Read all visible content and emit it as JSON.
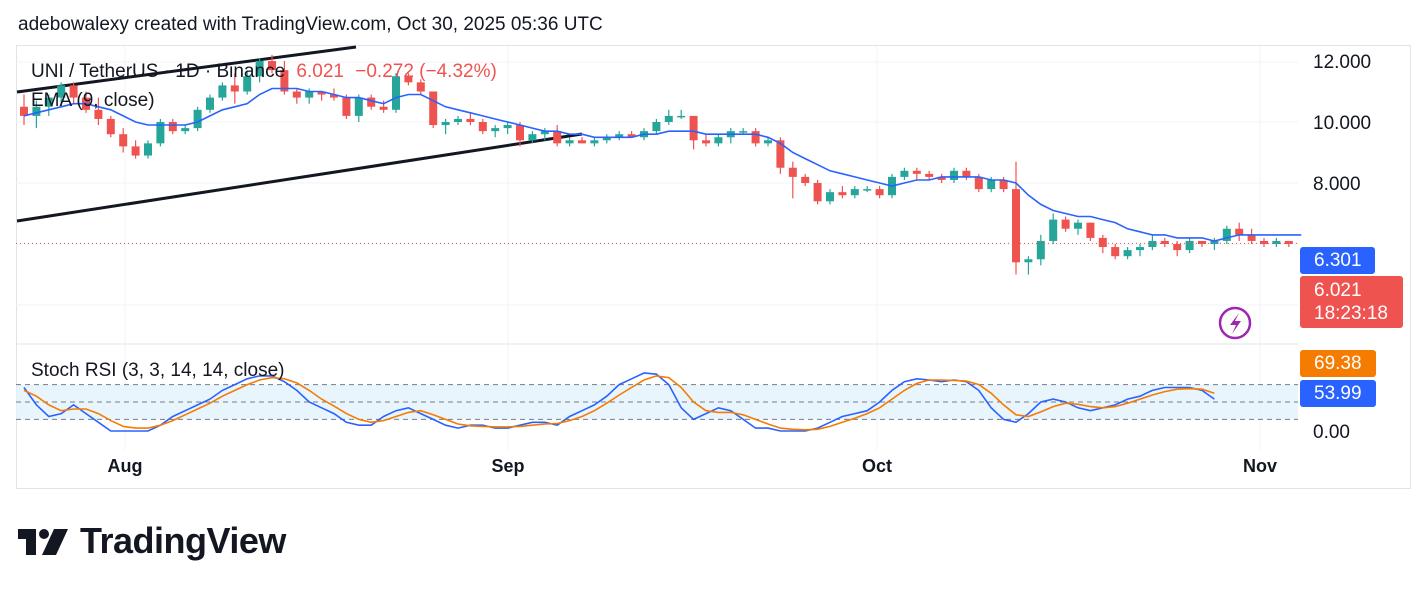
{
  "header": {
    "attribution": "adebowalexy created with TradingView.com, Oct 30, 2025 05:36 UTC"
  },
  "legend": {
    "symbol": "UNI / TetherUS · 1D · Binance",
    "last": "6.021",
    "change": "−0.272 (−4.32%)",
    "ema_label": "EMA (9, close)",
    "stoch_label": "Stoch RSI (3, 3, 14, 14, close)"
  },
  "price_scale": {
    "ticks": [
      "12.000",
      "10.000",
      "8.000"
    ],
    "ema_tag": "6.301",
    "last_tag": "6.021",
    "countdown": "18:23:18"
  },
  "stoch_scale": {
    "ticks": [
      "0.00"
    ],
    "k_tag": "69.38",
    "d_tag": "53.99"
  },
  "time_axis": [
    "Aug",
    "Sep",
    "Oct",
    "Nov"
  ],
  "brand": {
    "name": "TradingView"
  },
  "colors": {
    "up": "#26a69a",
    "down": "#ef5350",
    "ema": "#2962ff",
    "stoch_k": "#2962ff",
    "stoch_d": "#f57c00",
    "band": "#e3f2fd",
    "channel": "#131722",
    "lightning": "#9c27b0"
  },
  "chart_data": [
    {
      "type": "candlestick",
      "title": "UNI / TetherUS · 1D · Binance",
      "ylim": [
        4.9,
        13.0
      ],
      "candles": [
        {
          "o": 10.5,
          "h": 10.9,
          "l": 9.9,
          "c": 10.2
        },
        {
          "o": 10.2,
          "h": 10.7,
          "l": 9.8,
          "c": 10.5
        },
        {
          "o": 10.5,
          "h": 10.9,
          "l": 10.2,
          "c": 10.8
        },
        {
          "o": 10.8,
          "h": 11.3,
          "l": 10.5,
          "c": 11.2
        },
        {
          "o": 11.2,
          "h": 11.3,
          "l": 10.6,
          "c": 10.8
        },
        {
          "o": 10.8,
          "h": 11.0,
          "l": 10.3,
          "c": 10.4
        },
        {
          "o": 10.4,
          "h": 10.8,
          "l": 9.9,
          "c": 10.1
        },
        {
          "o": 10.1,
          "h": 10.2,
          "l": 9.5,
          "c": 9.6
        },
        {
          "o": 9.6,
          "h": 9.8,
          "l": 9.0,
          "c": 9.2
        },
        {
          "o": 9.2,
          "h": 9.4,
          "l": 8.8,
          "c": 8.9
        },
        {
          "o": 8.9,
          "h": 9.4,
          "l": 8.8,
          "c": 9.3
        },
        {
          "o": 9.3,
          "h": 10.1,
          "l": 9.2,
          "c": 10.0
        },
        {
          "o": 10.0,
          "h": 10.1,
          "l": 9.6,
          "c": 9.7
        },
        {
          "o": 9.7,
          "h": 9.9,
          "l": 9.6,
          "c": 9.8
        },
        {
          "o": 9.8,
          "h": 10.5,
          "l": 9.7,
          "c": 10.4
        },
        {
          "o": 10.4,
          "h": 10.9,
          "l": 10.3,
          "c": 10.8
        },
        {
          "o": 10.8,
          "h": 11.3,
          "l": 10.7,
          "c": 11.2
        },
        {
          "o": 11.2,
          "h": 11.6,
          "l": 10.6,
          "c": 11.0
        },
        {
          "o": 11.0,
          "h": 11.7,
          "l": 10.9,
          "c": 11.5
        },
        {
          "o": 11.5,
          "h": 12.1,
          "l": 11.3,
          "c": 12.0
        },
        {
          "o": 12.0,
          "h": 12.2,
          "l": 11.6,
          "c": 11.7
        },
        {
          "o": 11.7,
          "h": 12.0,
          "l": 10.9,
          "c": 11.0
        },
        {
          "o": 11.0,
          "h": 11.1,
          "l": 10.6,
          "c": 10.8
        },
        {
          "o": 10.8,
          "h": 11.1,
          "l": 10.6,
          "c": 11.0
        },
        {
          "o": 11.0,
          "h": 11.0,
          "l": 10.7,
          "c": 10.9
        },
        {
          "o": 10.9,
          "h": 11.1,
          "l": 10.7,
          "c": 10.8
        },
        {
          "o": 10.8,
          "h": 10.9,
          "l": 10.1,
          "c": 10.2
        },
        {
          "o": 10.2,
          "h": 10.9,
          "l": 10.0,
          "c": 10.8
        },
        {
          "o": 10.8,
          "h": 10.9,
          "l": 10.4,
          "c": 10.5
        },
        {
          "o": 10.5,
          "h": 10.7,
          "l": 10.3,
          "c": 10.4
        },
        {
          "o": 10.4,
          "h": 11.6,
          "l": 10.3,
          "c": 11.5
        },
        {
          "o": 11.5,
          "h": 11.6,
          "l": 11.2,
          "c": 11.3
        },
        {
          "o": 11.3,
          "h": 11.4,
          "l": 10.9,
          "c": 11.0
        },
        {
          "o": 11.0,
          "h": 11.0,
          "l": 9.8,
          "c": 9.9
        },
        {
          "o": 9.9,
          "h": 10.1,
          "l": 9.6,
          "c": 10.0
        },
        {
          "o": 10.0,
          "h": 10.2,
          "l": 9.9,
          "c": 10.1
        },
        {
          "o": 10.1,
          "h": 10.3,
          "l": 9.9,
          "c": 10.0
        },
        {
          "o": 10.0,
          "h": 10.1,
          "l": 9.6,
          "c": 9.7
        },
        {
          "o": 9.7,
          "h": 9.9,
          "l": 9.5,
          "c": 9.8
        },
        {
          "o": 9.8,
          "h": 10.0,
          "l": 9.6,
          "c": 9.9
        },
        {
          "o": 9.9,
          "h": 10.0,
          "l": 9.2,
          "c": 9.4
        },
        {
          "o": 9.4,
          "h": 9.7,
          "l": 9.3,
          "c": 9.6
        },
        {
          "o": 9.6,
          "h": 9.8,
          "l": 9.4,
          "c": 9.7
        },
        {
          "o": 9.7,
          "h": 9.9,
          "l": 9.2,
          "c": 9.3
        },
        {
          "o": 9.3,
          "h": 9.5,
          "l": 9.2,
          "c": 9.4
        },
        {
          "o": 9.4,
          "h": 9.5,
          "l": 9.3,
          "c": 9.3
        },
        {
          "o": 9.3,
          "h": 9.5,
          "l": 9.2,
          "c": 9.4
        },
        {
          "o": 9.4,
          "h": 9.6,
          "l": 9.3,
          "c": 9.5
        },
        {
          "o": 9.5,
          "h": 9.7,
          "l": 9.4,
          "c": 9.6
        },
        {
          "o": 9.6,
          "h": 9.7,
          "l": 9.5,
          "c": 9.5
        },
        {
          "o": 9.5,
          "h": 9.8,
          "l": 9.4,
          "c": 9.7
        },
        {
          "o": 9.7,
          "h": 10.1,
          "l": 9.6,
          "c": 10.0
        },
        {
          "o": 10.0,
          "h": 10.4,
          "l": 9.9,
          "c": 10.2
        },
        {
          "o": 10.2,
          "h": 10.4,
          "l": 10.1,
          "c": 10.2
        },
        {
          "o": 10.2,
          "h": 10.2,
          "l": 9.1,
          "c": 9.4
        },
        {
          "o": 9.4,
          "h": 9.6,
          "l": 9.2,
          "c": 9.3
        },
        {
          "o": 9.3,
          "h": 9.6,
          "l": 9.2,
          "c": 9.5
        },
        {
          "o": 9.5,
          "h": 9.8,
          "l": 9.3,
          "c": 9.7
        },
        {
          "o": 9.7,
          "h": 9.8,
          "l": 9.6,
          "c": 9.7
        },
        {
          "o": 9.7,
          "h": 9.8,
          "l": 9.2,
          "c": 9.3
        },
        {
          "o": 9.3,
          "h": 9.5,
          "l": 9.2,
          "c": 9.4
        },
        {
          "o": 9.4,
          "h": 9.5,
          "l": 8.3,
          "c": 8.5
        },
        {
          "o": 8.5,
          "h": 8.7,
          "l": 7.5,
          "c": 8.2
        },
        {
          "o": 8.2,
          "h": 8.3,
          "l": 7.9,
          "c": 8.0
        },
        {
          "o": 8.0,
          "h": 8.1,
          "l": 7.3,
          "c": 7.4
        },
        {
          "o": 7.4,
          "h": 7.8,
          "l": 7.3,
          "c": 7.7
        },
        {
          "o": 7.7,
          "h": 7.9,
          "l": 7.5,
          "c": 7.6
        },
        {
          "o": 7.6,
          "h": 7.9,
          "l": 7.5,
          "c": 7.8
        },
        {
          "o": 7.8,
          "h": 7.9,
          "l": 7.7,
          "c": 7.8
        },
        {
          "o": 7.8,
          "h": 7.9,
          "l": 7.5,
          "c": 7.6
        },
        {
          "o": 7.6,
          "h": 8.3,
          "l": 7.5,
          "c": 8.2
        },
        {
          "o": 8.2,
          "h": 8.5,
          "l": 8.1,
          "c": 8.4
        },
        {
          "o": 8.4,
          "h": 8.5,
          "l": 8.1,
          "c": 8.3
        },
        {
          "o": 8.3,
          "h": 8.4,
          "l": 8.1,
          "c": 8.2
        },
        {
          "o": 8.2,
          "h": 8.3,
          "l": 8.0,
          "c": 8.1
        },
        {
          "o": 8.1,
          "h": 8.5,
          "l": 8.0,
          "c": 8.4
        },
        {
          "o": 8.4,
          "h": 8.5,
          "l": 8.1,
          "c": 8.2
        },
        {
          "o": 8.2,
          "h": 8.3,
          "l": 7.7,
          "c": 7.8
        },
        {
          "o": 7.8,
          "h": 8.2,
          "l": 7.7,
          "c": 8.1
        },
        {
          "o": 8.1,
          "h": 8.2,
          "l": 7.7,
          "c": 7.8
        },
        {
          "o": 7.8,
          "h": 8.7,
          "l": 5.0,
          "c": 5.4
        },
        {
          "o": 5.4,
          "h": 5.6,
          "l": 5.0,
          "c": 5.5
        },
        {
          "o": 5.5,
          "h": 6.3,
          "l": 5.3,
          "c": 6.1
        },
        {
          "o": 6.1,
          "h": 7.0,
          "l": 6.0,
          "c": 6.8
        },
        {
          "o": 6.8,
          "h": 6.9,
          "l": 6.4,
          "c": 6.5
        },
        {
          "o": 6.5,
          "h": 6.8,
          "l": 6.3,
          "c": 6.7
        },
        {
          "o": 6.7,
          "h": 6.7,
          "l": 6.1,
          "c": 6.2
        },
        {
          "o": 6.2,
          "h": 6.3,
          "l": 5.7,
          "c": 5.9
        },
        {
          "o": 5.9,
          "h": 6.0,
          "l": 5.5,
          "c": 5.6
        },
        {
          "o": 5.6,
          "h": 5.9,
          "l": 5.5,
          "c": 5.8
        },
        {
          "o": 5.8,
          "h": 6.0,
          "l": 5.6,
          "c": 5.9
        },
        {
          "o": 5.9,
          "h": 6.3,
          "l": 5.8,
          "c": 6.1
        },
        {
          "o": 6.1,
          "h": 6.2,
          "l": 5.9,
          "c": 6.0
        },
        {
          "o": 6.0,
          "h": 6.1,
          "l": 5.6,
          "c": 5.8
        },
        {
          "o": 5.8,
          "h": 6.2,
          "l": 5.7,
          "c": 6.1
        },
        {
          "o": 6.1,
          "h": 6.1,
          "l": 5.9,
          "c": 6.0
        },
        {
          "o": 6.0,
          "h": 6.2,
          "l": 5.8,
          "c": 6.1
        },
        {
          "o": 6.1,
          "h": 6.6,
          "l": 6.0,
          "c": 6.5
        },
        {
          "o": 6.5,
          "h": 6.7,
          "l": 6.1,
          "c": 6.3
        },
        {
          "o": 6.3,
          "h": 6.5,
          "l": 6.0,
          "c": 6.1
        },
        {
          "o": 6.1,
          "h": 6.2,
          "l": 5.9,
          "c": 6.0
        },
        {
          "o": 6.0,
          "h": 6.2,
          "l": 5.9,
          "c": 6.1
        },
        {
          "o": 6.1,
          "h": 6.1,
          "l": 5.9,
          "c": 6.0
        }
      ],
      "ema": [
        10.2,
        10.3,
        10.4,
        10.5,
        10.6,
        10.6,
        10.5,
        10.4,
        10.2,
        10.0,
        9.9,
        9.9,
        9.9,
        9.9,
        10.0,
        10.2,
        10.4,
        10.5,
        10.6,
        10.9,
        11.1,
        11.1,
        11.1,
        11.0,
        11.0,
        10.9,
        10.8,
        10.8,
        10.7,
        10.6,
        10.8,
        10.9,
        10.9,
        10.7,
        10.5,
        10.4,
        10.3,
        10.2,
        10.1,
        10.0,
        9.9,
        9.8,
        9.7,
        9.7,
        9.6,
        9.6,
        9.5,
        9.5,
        9.5,
        9.5,
        9.6,
        9.6,
        9.7,
        9.7,
        9.7,
        9.6,
        9.6,
        9.6,
        9.6,
        9.6,
        9.5,
        9.3,
        9.0,
        8.8,
        8.6,
        8.4,
        8.3,
        8.2,
        8.1,
        8.0,
        7.9,
        8.0,
        8.1,
        8.1,
        8.2,
        8.2,
        8.2,
        8.2,
        8.1,
        8.1,
        8.0,
        7.6,
        7.3,
        7.1,
        7.0,
        6.9,
        6.9,
        6.8,
        6.7,
        6.5,
        6.4,
        6.3,
        6.3,
        6.2,
        6.2,
        6.2,
        6.1,
        6.2,
        6.3,
        6.3,
        6.3,
        6.3,
        6.3,
        6.3
      ],
      "last_price": 6.021,
      "ema_last": 6.301
    },
    {
      "type": "line",
      "title": "Stoch RSI (3, 3, 14, 14, close)",
      "ylim": [
        -10,
        110
      ],
      "bands": [
        20,
        80
      ],
      "series": [
        {
          "name": "K",
          "values": [
            75,
            45,
            25,
            30,
            45,
            30,
            15,
            0,
            0,
            0,
            0,
            10,
            25,
            35,
            45,
            55,
            70,
            80,
            90,
            95,
            95,
            85,
            70,
            50,
            40,
            30,
            15,
            10,
            10,
            25,
            35,
            40,
            30,
            20,
            10,
            5,
            10,
            10,
            5,
            5,
            10,
            15,
            15,
            10,
            25,
            35,
            45,
            60,
            80,
            90,
            100,
            98,
            80,
            40,
            20,
            30,
            40,
            35,
            20,
            5,
            5,
            0,
            0,
            0,
            5,
            15,
            25,
            30,
            35,
            50,
            70,
            85,
            90,
            88,
            85,
            88,
            85,
            70,
            40,
            20,
            15,
            30,
            50,
            55,
            50,
            40,
            35,
            40,
            45,
            55,
            60,
            70,
            75,
            75,
            75,
            70,
            55
          ]
        },
        {
          "name": "D",
          "values": [
            70,
            60,
            45,
            35,
            38,
            38,
            30,
            18,
            8,
            5,
            5,
            10,
            18,
            28,
            38,
            48,
            60,
            70,
            80,
            88,
            92,
            90,
            83,
            70,
            55,
            43,
            30,
            20,
            15,
            18,
            25,
            32,
            35,
            28,
            20,
            12,
            9,
            8,
            7,
            7,
            8,
            10,
            12,
            13,
            18,
            25,
            35,
            48,
            62,
            75,
            88,
            95,
            92,
            75,
            50,
            35,
            32,
            32,
            28,
            20,
            12,
            5,
            3,
            2,
            3,
            8,
            15,
            22,
            30,
            40,
            55,
            70,
            82,
            88,
            88,
            87,
            86,
            80,
            65,
            45,
            28,
            25,
            33,
            42,
            48,
            46,
            42,
            40,
            42,
            48,
            55,
            62,
            68,
            72,
            73,
            72,
            65
          ]
        }
      ],
      "k_last": 69.38,
      "d_last": 53.99
    }
  ]
}
